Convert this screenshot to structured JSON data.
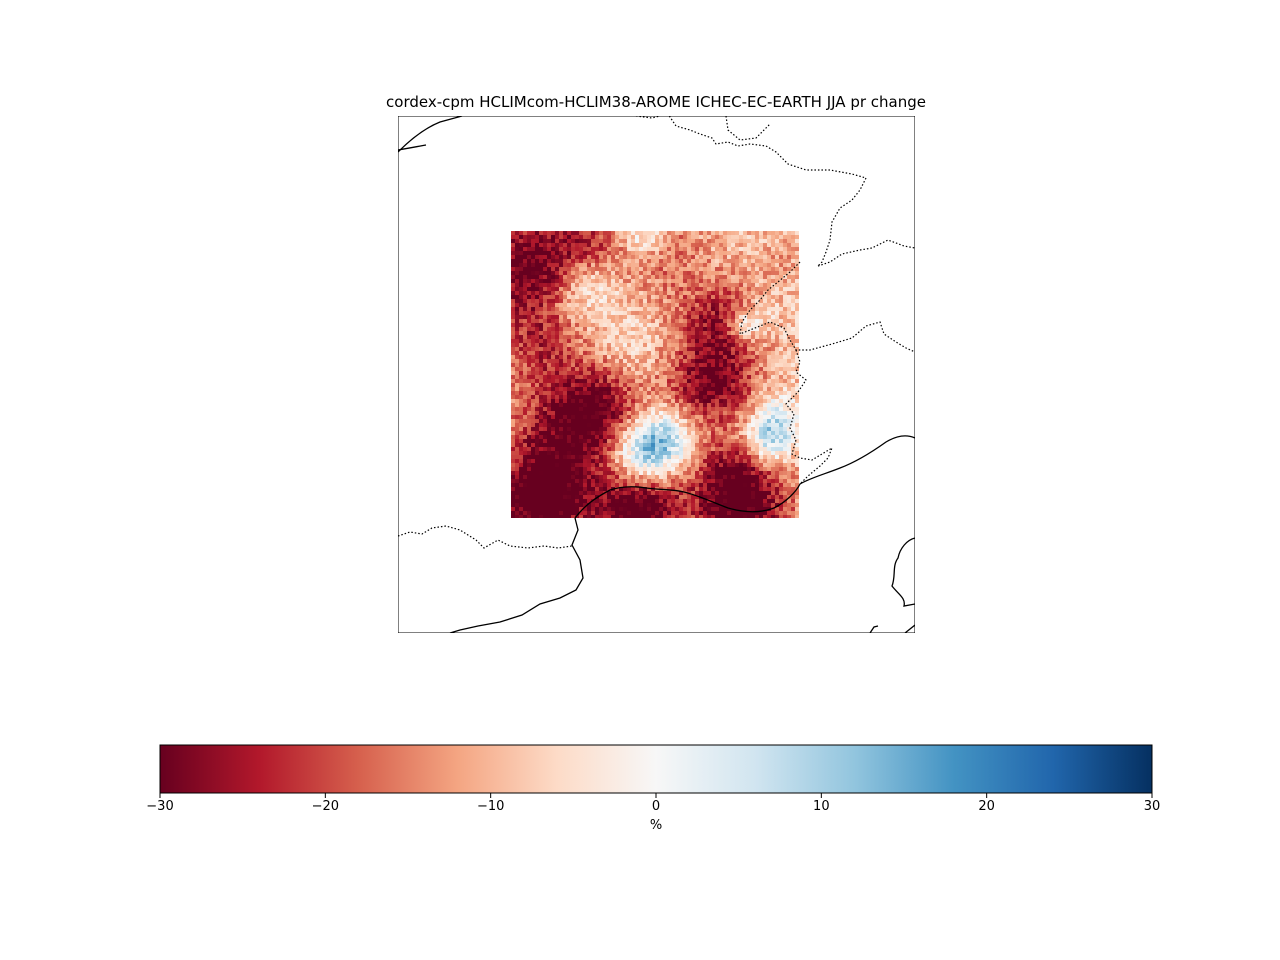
{
  "map": {
    "title": "cordex-cpm HCLIMcom-HCLIM38-AROME ICHEC-EC-EARTH JJA pr change",
    "data_field": "pr change (JJA)",
    "colormap": "RdBu"
  },
  "colorbar": {
    "label": "%",
    "min": -30,
    "max": 30,
    "ticks": [
      {
        "value": -30,
        "label": "−30"
      },
      {
        "value": -20,
        "label": "−20"
      },
      {
        "value": -10,
        "label": "−10"
      },
      {
        "value": 0,
        "label": "0"
      },
      {
        "value": 10,
        "label": "10"
      },
      {
        "value": 20,
        "label": "20"
      },
      {
        "value": 30,
        "label": "30"
      }
    ],
    "colors": [
      "#67001f",
      "#b2182b",
      "#d6604d",
      "#f4a582",
      "#fddbc7",
      "#f7f7f7",
      "#d1e5f0",
      "#92c5de",
      "#4393c3",
      "#2166ac",
      "#053061"
    ]
  }
}
